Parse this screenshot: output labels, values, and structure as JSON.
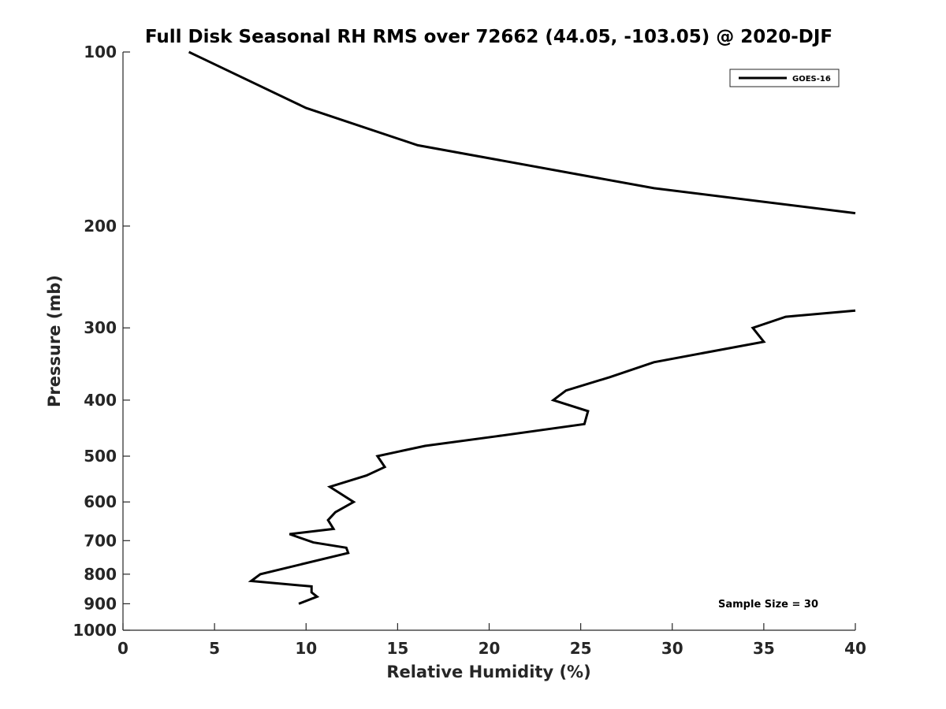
{
  "chart_data": {
    "type": "line",
    "title": "Full Disk Seasonal RH RMS over 72662 (44.05, -103.05) @ 2020-DJF",
    "xlabel": "Relative Humidity (%)",
    "ylabel": "Pressure (mb)",
    "xlim": [
      0,
      40
    ],
    "ylim": [
      100,
      1000
    ],
    "y_scale": "log",
    "y_reversed": true,
    "x_ticks": [
      0,
      5,
      10,
      15,
      20,
      25,
      30,
      35,
      40
    ],
    "x_tick_labels": [
      "0",
      "5",
      "10",
      "15",
      "20",
      "25",
      "30",
      "35",
      "40"
    ],
    "y_ticks": [
      100,
      200,
      300,
      400,
      500,
      600,
      700,
      800,
      900,
      1000
    ],
    "y_tick_labels": [
      "100",
      "200",
      "300",
      "400",
      "500",
      "600",
      "700",
      "800",
      "900",
      "1000"
    ],
    "grid": false,
    "legend": {
      "placement": "top-right",
      "entries": [
        "GOES-16"
      ]
    },
    "annotation": "Sample Size = 30",
    "line_color": "#000000",
    "series": [
      {
        "name": "GOES-16",
        "segments": [
          [
            {
              "x": 3.6,
              "y": 100
            },
            {
              "x": 10.0,
              "y": 125
            },
            {
              "x": 16.1,
              "y": 145
            },
            {
              "x": 29.0,
              "y": 172
            },
            {
              "x": 40.0,
              "y": 190
            }
          ],
          [
            {
              "x": 40.0,
              "y": 280
            },
            {
              "x": 36.2,
              "y": 287
            },
            {
              "x": 34.4,
              "y": 300
            },
            {
              "x": 35.0,
              "y": 317
            },
            {
              "x": 29.0,
              "y": 344
            },
            {
              "x": 26.6,
              "y": 365
            },
            {
              "x": 24.2,
              "y": 385
            },
            {
              "x": 23.5,
              "y": 400
            },
            {
              "x": 25.4,
              "y": 418
            },
            {
              "x": 25.2,
              "y": 440
            },
            {
              "x": 20.4,
              "y": 462
            },
            {
              "x": 16.5,
              "y": 480
            },
            {
              "x": 13.9,
              "y": 500
            },
            {
              "x": 14.3,
              "y": 522
            },
            {
              "x": 13.3,
              "y": 540
            },
            {
              "x": 11.3,
              "y": 565
            },
            {
              "x": 12.6,
              "y": 600
            },
            {
              "x": 11.6,
              "y": 625
            },
            {
              "x": 11.2,
              "y": 645
            },
            {
              "x": 11.5,
              "y": 668
            },
            {
              "x": 9.1,
              "y": 682
            },
            {
              "x": 10.4,
              "y": 705
            },
            {
              "x": 12.2,
              "y": 720
            },
            {
              "x": 12.3,
              "y": 735
            },
            {
              "x": 7.5,
              "y": 800
            },
            {
              "x": 7.0,
              "y": 822
            },
            {
              "x": 10.3,
              "y": 840
            },
            {
              "x": 10.3,
              "y": 860
            },
            {
              "x": 10.6,
              "y": 875
            },
            {
              "x": 9.6,
              "y": 900
            }
          ]
        ]
      }
    ]
  }
}
